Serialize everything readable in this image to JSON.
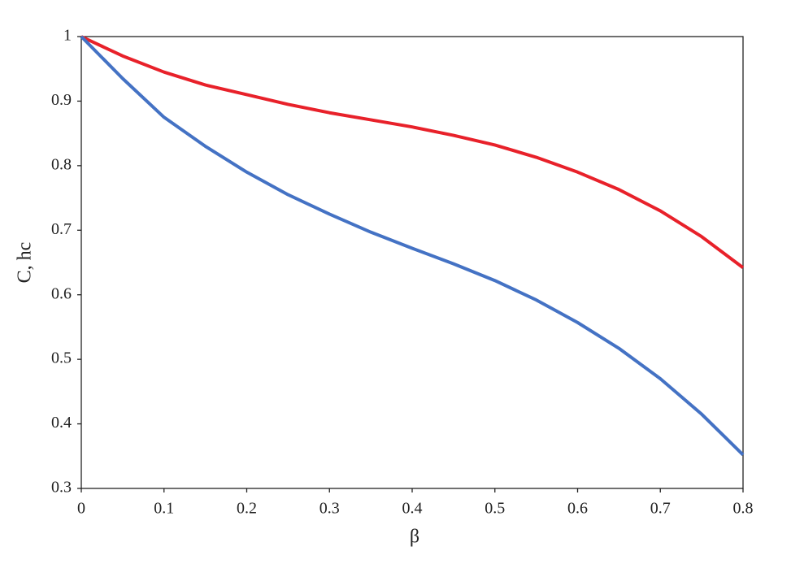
{
  "chart_data": {
    "type": "line",
    "x": [
      0,
      0.05,
      0.1,
      0.15,
      0.2,
      0.25,
      0.3,
      0.35,
      0.4,
      0.45,
      0.5,
      0.55,
      0.6,
      0.65,
      0.7,
      0.75,
      0.8
    ],
    "series": [
      {
        "color": "#e8212a",
        "values": [
          1,
          0.97,
          0.945,
          0.925,
          0.91,
          0.895,
          0.882,
          0.871,
          0.86,
          0.847,
          0.832,
          0.813,
          0.79,
          0.763,
          0.73,
          0.69,
          0.642
        ]
      },
      {
        "color": "#4472c4",
        "values": [
          1,
          0.935,
          0.875,
          0.83,
          0.79,
          0.755,
          0.725,
          0.697,
          0.672,
          0.648,
          0.622,
          0.592,
          0.557,
          0.517,
          0.47,
          0.415,
          0.352
        ]
      }
    ],
    "x_label": "β",
    "y_label": "C, hc",
    "xlim": [
      0,
      0.8
    ],
    "xticks": [
      0,
      0.1,
      0.2,
      0.3,
      0.4,
      0.5,
      0.6,
      0.7,
      0.8
    ],
    "ylim": [
      0.3,
      1
    ],
    "yticks": [
      0.3,
      0.4,
      0.5,
      0.6,
      0.7,
      0.8,
      0.9,
      1
    ],
    "grid": false
  }
}
